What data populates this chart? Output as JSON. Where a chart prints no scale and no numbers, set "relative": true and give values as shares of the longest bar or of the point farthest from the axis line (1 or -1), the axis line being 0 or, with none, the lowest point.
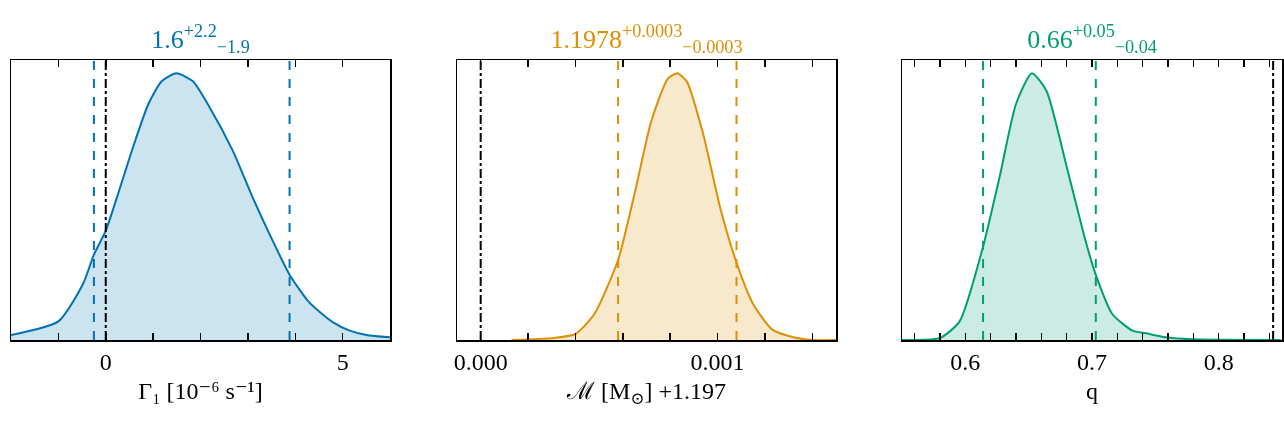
{
  "chart_data": [
    {
      "type": "area",
      "relative": true,
      "title": "1.6$^{+2.2}$$_{−1.9}$",
      "xlabel": "Γ₁ [10⁻⁶ s⁻¹]",
      "xlim": [
        -2,
        6
      ],
      "xticks": [
        {
          "value": -1,
          "label": null
        },
        0,
        {
          "value": 1,
          "label": null
        },
        {
          "value": 2,
          "label": null
        },
        {
          "value": 3,
          "label": null
        },
        {
          "value": 4,
          "label": null
        },
        5
      ],
      "series": [
        {
          "color": "#0173b2",
          "x": [
            -2,
            -1,
            -0.48,
            -0.25,
            0,
            0.3,
            0.57,
            0.9,
            1.18,
            1.49,
            1.84,
            2.2,
            2.68,
            3.1,
            3.53,
            3.88,
            4.3,
            4.8,
            5.15,
            5.5,
            6
          ],
          "values": [
            0.019,
            0.07,
            0.21,
            0.32,
            0.41,
            0.57,
            0.72,
            0.885,
            0.97,
            1,
            0.97,
            0.87,
            0.71,
            0.535,
            0.37,
            0.245,
            0.14,
            0.066,
            0.035,
            0.019,
            0.01
          ]
        }
      ],
      "ref_lines": [
        {
          "axis": "x",
          "value": -0.25,
          "color": "#0173b2",
          "line_style": "dashed"
        },
        {
          "axis": "x",
          "value": 3.88,
          "color": "#0173b2",
          "line_style": "dashed"
        },
        {
          "axis": "x",
          "value": 0,
          "color": "#000000",
          "line_style": "dashdot"
        }
      ],
      "grid": false
    },
    {
      "type": "area",
      "relative": true,
      "title": "1.1978$^{+0.0003}$$_{−0.0003}$",
      "xlabel": "ℳ [M$_{⊙}$] +1.197",
      "xlim": [
        -0.0001,
        0.0015
      ],
      "xticks": [
        {
          "value": 0,
          "label": "0.000"
        },
        {
          "value": 0.0002,
          "label": null
        },
        {
          "value": 0.0004,
          "label": null
        },
        {
          "value": 0.0006,
          "label": null
        },
        {
          "value": 0.0008,
          "label": null
        },
        0.001,
        {
          "value": 0.0012,
          "label": null
        },
        {
          "value": 0.0014,
          "label": null
        }
      ],
      "series": [
        {
          "color": "#de8f05",
          "x": [
            0.00013,
            0.00031,
            0.0004,
            0.00048,
            0.00058,
            0.00065,
            0.00072,
            0.00079,
            0.00083,
            0.00087,
            0.00094,
            0.00101,
            0.00108,
            0.00115,
            0.00123,
            0.00132,
            0.0014,
            0.0015
          ],
          "values": [
            0,
            0.0075,
            0.0225,
            0.0975,
            0.3,
            0.55,
            0.82,
            0.98,
            1,
            0.97,
            0.77,
            0.5,
            0.29,
            0.135,
            0.04,
            0.01,
            0,
            0
          ]
        }
      ],
      "ref_lines": [
        {
          "axis": "x",
          "value": 0.00058,
          "color": "#de8f05",
          "line_style": "dashed"
        },
        {
          "axis": "x",
          "value": 0.00108,
          "color": "#de8f05",
          "line_style": "dashed"
        },
        {
          "axis": "x",
          "value": 0,
          "color": "#000000",
          "line_style": "dashdot"
        }
      ],
      "grid": false
    },
    {
      "type": "area",
      "relative": true,
      "title": "0.66$^{+0.05}$$_{−0.04}$",
      "xlabel": "q",
      "xlim": [
        0.55,
        0.85
      ],
      "xticks": [
        {
          "value": 0.56,
          "label": null
        },
        {
          "value": 0.58,
          "label": null
        },
        0.6,
        {
          "value": 0.62,
          "label": null
        },
        {
          "value": 0.64,
          "label": null
        },
        {
          "value": 0.66,
          "label": null
        },
        {
          "value": 0.68,
          "label": null
        },
        0.7,
        {
          "value": 0.72,
          "label": null
        },
        {
          "value": 0.74,
          "label": null
        },
        {
          "value": 0.76,
          "label": null
        },
        {
          "value": 0.78,
          "label": null
        },
        0.8,
        {
          "value": 0.82,
          "label": null
        },
        {
          "value": 0.84,
          "label": null
        }
      ],
      "series": [
        {
          "color": "#029e73",
          "x": [
            0.55,
            0.58,
            0.5955,
            0.614,
            0.627,
            0.64,
            0.6525,
            0.664,
            0.68,
            0.695,
            0.7026,
            0.716,
            0.732,
            0.7425,
            0.758,
            0.779,
            0.849
          ],
          "values": [
            0,
            0.0075,
            0.07,
            0.35,
            0.61,
            0.885,
            1,
            0.935,
            0.65,
            0.37,
            0.25,
            0.0975,
            0.035,
            0.025,
            0.01,
            0.0025,
            0
          ]
        }
      ],
      "ref_lines": [
        {
          "axis": "x",
          "value": 0.614,
          "color": "#029e73",
          "line_style": "dashed"
        },
        {
          "axis": "x",
          "value": 0.703,
          "color": "#029e73",
          "line_style": "dashed"
        },
        {
          "axis": "x",
          "value": 0.843,
          "color": "#000000",
          "line_style": "dashdot"
        }
      ],
      "grid": false
    }
  ]
}
